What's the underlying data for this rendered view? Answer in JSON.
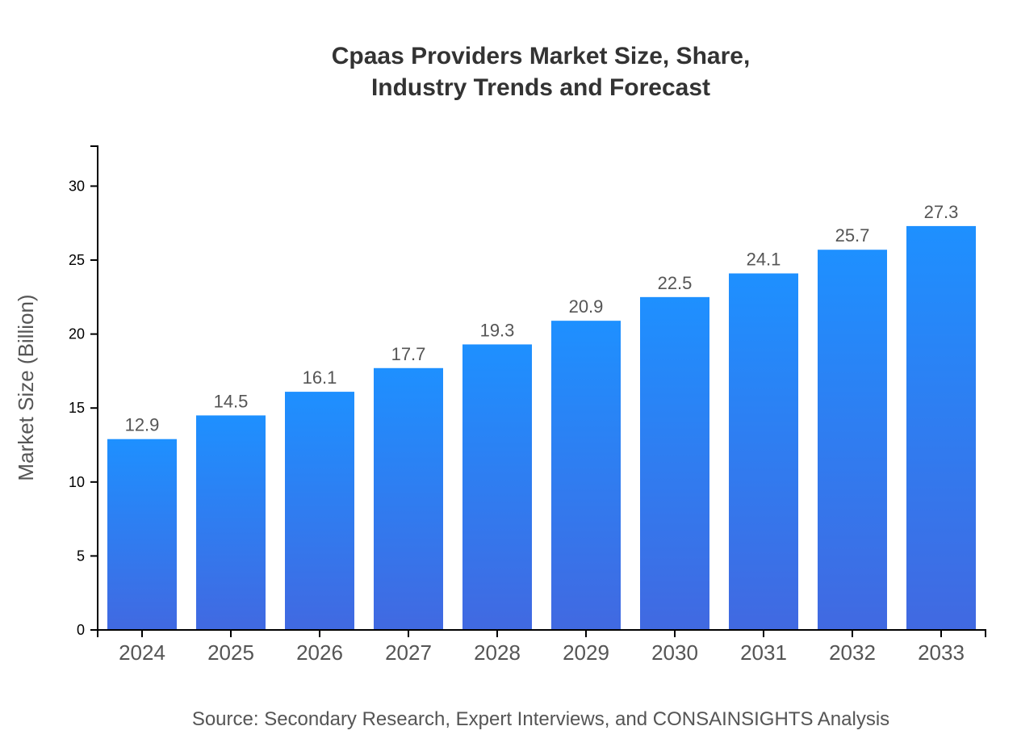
{
  "chart_data": {
    "type": "bar",
    "title_lines": [
      "Cpaas Providers Market Size, Share,",
      "Industry Trends and Forecast"
    ],
    "categories": [
      "2024",
      "2025",
      "2026",
      "2027",
      "2028",
      "2029",
      "2030",
      "2031",
      "2032",
      "2033"
    ],
    "values": [
      12.9,
      14.5,
      16.1,
      17.7,
      19.3,
      20.9,
      22.5,
      24.1,
      25.7,
      27.3
    ],
    "value_labels": [
      "12.9",
      "14.5",
      "16.1",
      "17.7",
      "19.3",
      "20.9",
      "22.5",
      "24.1",
      "25.7",
      "27.3"
    ],
    "xlabel": "",
    "ylabel": "Market Size (Billion)",
    "ylim": [
      0,
      32.7
    ],
    "yticks": [
      "0",
      "5",
      "10",
      "15",
      "20",
      "25",
      "30"
    ],
    "grid": false,
    "colors": {
      "bar_top": "#1e90ff",
      "bar_bottom": "#4169e1"
    }
  },
  "source": "Source: Secondary Research, Expert Interviews, and CONSAINSIGHTS Analysis"
}
